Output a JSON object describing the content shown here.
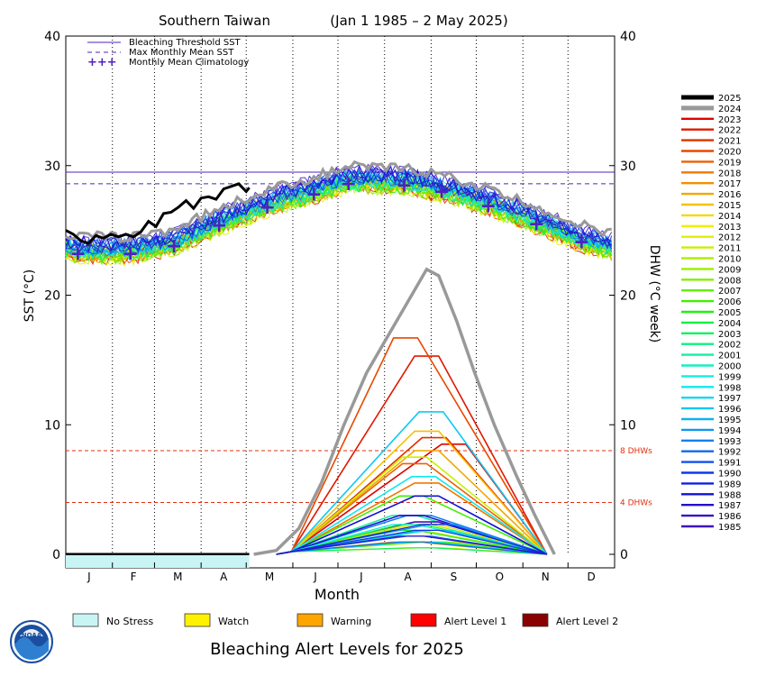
{
  "chart_data": {
    "type": "line",
    "title": "Southern Taiwan",
    "period": "(Jan 1 1985 – 2 May 2025)",
    "xlabel": "Month",
    "ylabel_left": "SST (°C)",
    "ylabel_right": "DHW (°C week)",
    "ylim": [
      0,
      40
    ],
    "y_ticks": [
      "0",
      "10",
      "20",
      "30",
      "40"
    ],
    "months": [
      "J",
      "F",
      "M",
      "A",
      "M",
      "J",
      "J",
      "A",
      "S",
      "O",
      "N",
      "D"
    ],
    "bleaching_threshold_sst": 29.5,
    "max_monthly_mean_sst": 28.6,
    "dhw_threshold_lines": [
      {
        "value": 8,
        "label": "8 DHWs"
      },
      {
        "value": 4,
        "label": "4 DHWs"
      }
    ],
    "legend_items": [
      {
        "label": "Bleaching Threshold SST",
        "style": "solid"
      },
      {
        "label": "Max Monthly Mean SST",
        "style": "dashed"
      },
      {
        "label": "Monthly Mean Climatology",
        "style": "plus"
      }
    ],
    "monthly_mean_climatology": [
      {
        "day": 8,
        "sst": 23.2
      },
      {
        "day": 43,
        "sst": 23.2
      },
      {
        "day": 72,
        "sst": 23.8
      },
      {
        "day": 102,
        "sst": 25.4
      },
      {
        "day": 134,
        "sst": 26.8
      },
      {
        "day": 165,
        "sst": 27.8
      },
      {
        "day": 188,
        "sst": 28.6
      },
      {
        "day": 225,
        "sst": 28.5
      },
      {
        "day": 250,
        "sst": 28.0
      },
      {
        "day": 281,
        "sst": 26.9
      },
      {
        "day": 313,
        "sst": 25.5
      },
      {
        "day": 343,
        "sst": 24.1
      }
    ],
    "series_2025_sst": [
      {
        "day": 0,
        "sst": 25.0
      },
      {
        "day": 5,
        "sst": 24.7
      },
      {
        "day": 10,
        "sst": 24.2
      },
      {
        "day": 15,
        "sst": 24.0
      },
      {
        "day": 20,
        "sst": 24.6
      },
      {
        "day": 25,
        "sst": 24.4
      },
      {
        "day": 30,
        "sst": 24.7
      },
      {
        "day": 35,
        "sst": 24.5
      },
      {
        "day": 40,
        "sst": 24.7
      },
      {
        "day": 45,
        "sst": 24.5
      },
      {
        "day": 50,
        "sst": 24.9
      },
      {
        "day": 55,
        "sst": 25.7
      },
      {
        "day": 60,
        "sst": 25.3
      },
      {
        "day": 65,
        "sst": 26.3
      },
      {
        "day": 70,
        "sst": 26.4
      },
      {
        "day": 75,
        "sst": 26.8
      },
      {
        "day": 80,
        "sst": 27.3
      },
      {
        "day": 85,
        "sst": 26.7
      },
      {
        "day": 90,
        "sst": 27.5
      },
      {
        "day": 95,
        "sst": 27.6
      },
      {
        "day": 100,
        "sst": 27.4
      },
      {
        "day": 105,
        "sst": 28.2
      },
      {
        "day": 110,
        "sst": 28.4
      },
      {
        "day": 115,
        "sst": 28.6
      },
      {
        "day": 120,
        "sst": 28.0
      },
      {
        "day": 122,
        "sst": 28.3
      }
    ],
    "series_2024_dhw": [
      {
        "day": 125,
        "dhw": 0
      },
      {
        "day": 140,
        "dhw": 0.3
      },
      {
        "day": 155,
        "dhw": 2
      },
      {
        "day": 170,
        "dhw": 5.5
      },
      {
        "day": 185,
        "dhw": 10
      },
      {
        "day": 200,
        "dhw": 14
      },
      {
        "day": 215,
        "dhw": 17
      },
      {
        "day": 230,
        "dhw": 20
      },
      {
        "day": 240,
        "dhw": 22
      },
      {
        "day": 248,
        "dhw": 21.5
      },
      {
        "day": 260,
        "dhw": 18
      },
      {
        "day": 272,
        "dhw": 14
      },
      {
        "day": 285,
        "dhw": 10
      },
      {
        "day": 300,
        "dhw": 6
      },
      {
        "day": 312,
        "dhw": 3
      },
      {
        "day": 325,
        "dhw": 0
      }
    ],
    "other_years_dhw_peaks": [
      {
        "year": "2023",
        "peak": 8.5,
        "peak_day": 258
      },
      {
        "year": "2022",
        "peak": 15.3,
        "peak_day": 240
      },
      {
        "year": "2021",
        "peak": 9.0,
        "peak_day": 245
      },
      {
        "year": "2020",
        "peak": 16.7,
        "peak_day": 226
      },
      {
        "year": "2019",
        "peak": 7.0,
        "peak_day": 232
      },
      {
        "year": "2018",
        "peak": 5.5,
        "peak_day": 240
      },
      {
        "year": "2016",
        "peak": 8.0,
        "peak_day": 240
      },
      {
        "year": "2015",
        "peak": 9.5,
        "peak_day": 240
      },
      {
        "year": "2011",
        "peak": 7.5,
        "peak_day": 232
      },
      {
        "year": "2006",
        "peak": 4.5,
        "peak_day": 230
      },
      {
        "year": "2001",
        "peak": 3.0,
        "peak_day": 225
      },
      {
        "year": "1998",
        "peak": 6.0,
        "peak_day": 238
      },
      {
        "year": "1996",
        "peak": 11.0,
        "peak_day": 243
      },
      {
        "year": "1993",
        "peak": 3.0,
        "peak_day": 235
      },
      {
        "year": "1988",
        "peak": 4.5,
        "peak_day": 240
      },
      {
        "year": "1987",
        "peak": 3.0,
        "peak_day": 230
      },
      {
        "year": "1985",
        "peak": 2.5,
        "peak_day": 240
      }
    ],
    "year_legend": [
      {
        "year": "2025",
        "color": "#000000"
      },
      {
        "year": "2024",
        "color": "#999999"
      },
      {
        "year": "2023",
        "color": "#e00000"
      },
      {
        "year": "2022",
        "color": "#e01800"
      },
      {
        "year": "2021",
        "color": "#e03000"
      },
      {
        "year": "2020",
        "color": "#e84800"
      },
      {
        "year": "2019",
        "color": "#ec6000"
      },
      {
        "year": "2018",
        "color": "#f07800"
      },
      {
        "year": "2017",
        "color": "#f09000"
      },
      {
        "year": "2016",
        "color": "#f0a800"
      },
      {
        "year": "2015",
        "color": "#f8c000"
      },
      {
        "year": "2014",
        "color": "#f8d800"
      },
      {
        "year": "2013",
        "color": "#f0f000"
      },
      {
        "year": "2012",
        "color": "#e0f000"
      },
      {
        "year": "2011",
        "color": "#c8f000"
      },
      {
        "year": "2010",
        "color": "#b0f000"
      },
      {
        "year": "2009",
        "color": "#98f000"
      },
      {
        "year": "2008",
        "color": "#80f000"
      },
      {
        "year": "2007",
        "color": "#60f000"
      },
      {
        "year": "2006",
        "color": "#40f000"
      },
      {
        "year": "2005",
        "color": "#20f010"
      },
      {
        "year": "2004",
        "color": "#10f040"
      },
      {
        "year": "2003",
        "color": "#10f060"
      },
      {
        "year": "2002",
        "color": "#10f080"
      },
      {
        "year": "2001",
        "color": "#10f0a0"
      },
      {
        "year": "2000",
        "color": "#10f0c0"
      },
      {
        "year": "1999",
        "color": "#10f0e0"
      },
      {
        "year": "1998",
        "color": "#10e8f0"
      },
      {
        "year": "1997",
        "color": "#10d8f0"
      },
      {
        "year": "1996",
        "color": "#10c8f0"
      },
      {
        "year": "1995",
        "color": "#10b0f0"
      },
      {
        "year": "1994",
        "color": "#1098f0"
      },
      {
        "year": "1993",
        "color": "#1080f0"
      },
      {
        "year": "1992",
        "color": "#1068f0"
      },
      {
        "year": "1991",
        "color": "#1050f0"
      },
      {
        "year": "1990",
        "color": "#1038e8"
      },
      {
        "year": "1989",
        "color": "#1020e0"
      },
      {
        "year": "1988",
        "color": "#1010d8"
      },
      {
        "year": "1987",
        "color": "#2010d0"
      },
      {
        "year": "1986",
        "color": "#3010c8"
      },
      {
        "year": "1985",
        "color": "#4010c0"
      }
    ],
    "alert_levels": [
      {
        "label": "No Stress",
        "color": "#c8f4f4"
      },
      {
        "label": "Watch",
        "color": "#fff200"
      },
      {
        "label": "Warning",
        "color": "#ffa500"
      },
      {
        "label": "Alert Level 1",
        "color": "#ff0000"
      },
      {
        "label": "Alert Level 2",
        "color": "#8b0000"
      }
    ],
    "alert_footer": "Bleaching Alert Levels for 2025",
    "current_alert": "No Stress",
    "current_alert_end_day": 122
  },
  "logo_text": "NOAA"
}
